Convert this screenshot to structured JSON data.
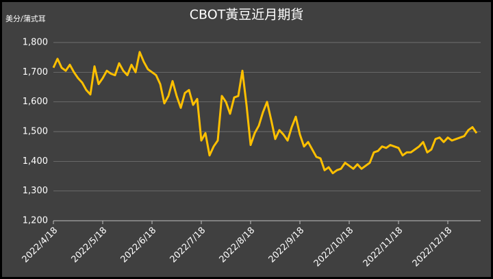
{
  "chart_data": {
    "type": "line",
    "title": "CBOT黃豆近月期貨",
    "y_label": "美分/蒲式耳",
    "categories": [
      "2022/4/18",
      null,
      null,
      null,
      null,
      null,
      null,
      null,
      null,
      null,
      null,
      null,
      "2022/5/18",
      null,
      null,
      null,
      null,
      null,
      null,
      null,
      null,
      null,
      null,
      null,
      "2022/6/18",
      null,
      null,
      null,
      null,
      null,
      null,
      null,
      null,
      null,
      null,
      null,
      "2022/7/18",
      null,
      null,
      null,
      null,
      null,
      null,
      null,
      null,
      null,
      null,
      null,
      "2022/8/18",
      null,
      null,
      null,
      null,
      null,
      null,
      null,
      null,
      null,
      null,
      null,
      "2022/9/18",
      null,
      null,
      null,
      null,
      null,
      null,
      null,
      null,
      null,
      null,
      null,
      "2022/10/18",
      null,
      null,
      null,
      null,
      null,
      null,
      null,
      null,
      null,
      null,
      null,
      "2022/11/18",
      null,
      null,
      null,
      null,
      null,
      null,
      null,
      null,
      null,
      null,
      null,
      "2022/12/18",
      null,
      null,
      null,
      null,
      null,
      null,
      null
    ],
    "series": [
      {
        "color": "#ffc000",
        "values": [
          1715,
          1745,
          1715,
          1705,
          1725,
          1700,
          1680,
          1665,
          1640,
          1625,
          1720,
          1660,
          1680,
          1705,
          1695,
          1690,
          1730,
          1705,
          1690,
          1725,
          1700,
          1768,
          1735,
          1710,
          1700,
          1690,
          1660,
          1595,
          1620,
          1670,
          1620,
          1580,
          1630,
          1640,
          1590,
          1610,
          1470,
          1495,
          1420,
          1450,
          1470,
          1620,
          1600,
          1560,
          1615,
          1620,
          1705,
          1590,
          1455,
          1495,
          1520,
          1565,
          1600,
          1540,
          1475,
          1505,
          1490,
          1470,
          1515,
          1550,
          1490,
          1450,
          1465,
          1440,
          1415,
          1410,
          1370,
          1380,
          1360,
          1370,
          1375,
          1395,
          1385,
          1375,
          1390,
          1375,
          1385,
          1395,
          1430,
          1435,
          1450,
          1445,
          1455,
          1450,
          1445,
          1420,
          1430,
          1430,
          1440,
          1450,
          1465,
          1430,
          1440,
          1475,
          1480,
          1465,
          1480,
          1470,
          1475,
          1480,
          1485,
          1505,
          1515,
          1495
        ]
      }
    ],
    "ylim": [
      1200,
      1800
    ],
    "yticks": [
      {
        "value": 1200,
        "label": "1,200"
      },
      {
        "value": 1300,
        "label": "1,300"
      },
      {
        "value": 1400,
        "label": "1,400"
      },
      {
        "value": 1500,
        "label": "1,500"
      },
      {
        "value": 1600,
        "label": "1,600"
      },
      {
        "value": 1700,
        "label": "1,700"
      },
      {
        "value": 1800,
        "label": "1,800"
      }
    ],
    "grid": true
  }
}
